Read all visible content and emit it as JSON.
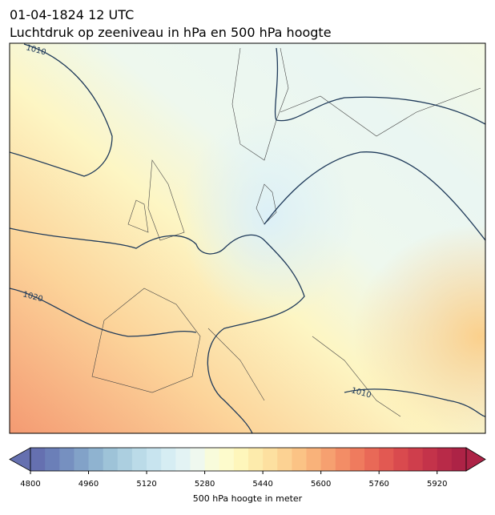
{
  "header": {
    "title": "01-04-1824 12 UTC",
    "subtitle": "Luchtdruk op zeeniveau in hPa en 500 hPa hoogte"
  },
  "map": {
    "contour_labels": [
      "1010",
      "1020",
      "1010"
    ]
  },
  "colorbar": {
    "label": "500 hPa hoogte in meter",
    "range": [
      4800,
      6000
    ],
    "ticks": [
      4800,
      4960,
      5120,
      5280,
      5440,
      5600,
      5760,
      5920
    ],
    "colors": [
      "#6570b0",
      "#6b7fb8",
      "#7690c0",
      "#82a2c8",
      "#8fb3d0",
      "#9ec3d8",
      "#accfe0",
      "#bbdbe8",
      "#c8e4ef",
      "#d6edf3",
      "#e3f3f4",
      "#eff8ef",
      "#f8fbdb",
      "#fdfbcc",
      "#fef6bb",
      "#fdebac",
      "#fde0a0",
      "#fcd293",
      "#fbc385",
      "#f9b27a",
      "#f6a070",
      "#f38d66",
      "#ef7b5e",
      "#e96957",
      "#e25952",
      "#d94a4e",
      "#cf3e4c",
      "#c4334a",
      "#b82a48",
      "#ad2346"
    ]
  }
}
